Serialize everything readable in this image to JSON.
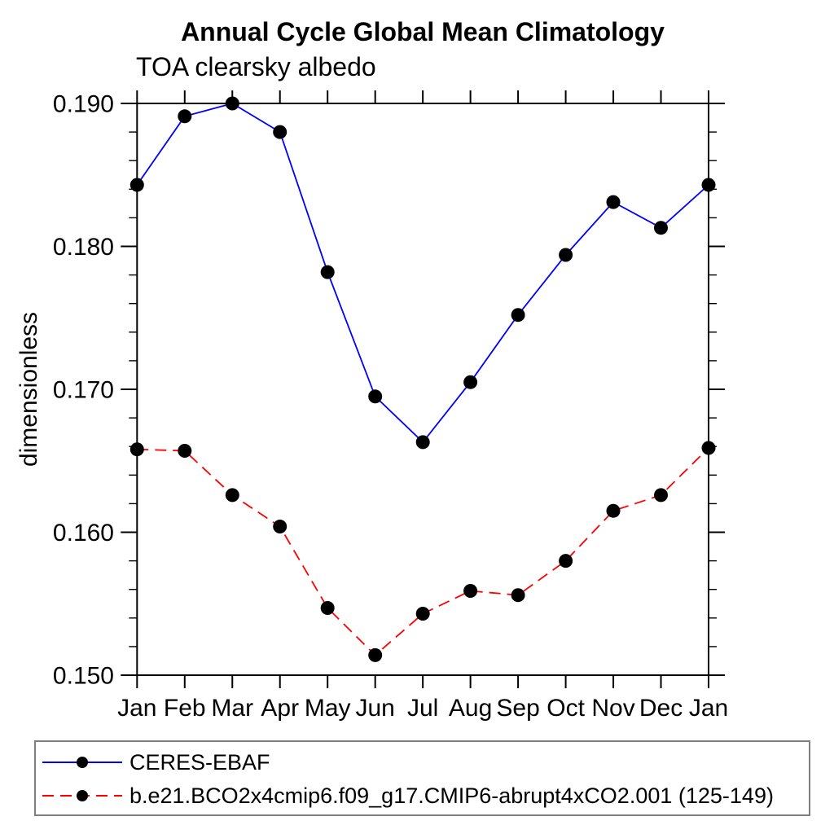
{
  "chart_data": {
    "type": "line",
    "title": "Annual Cycle Global Mean Climatology",
    "subtitle": "TOA clearsky albedo",
    "ylabel": "dimensionless",
    "ylim": [
      0.15,
      0.19
    ],
    "ytick_major": 0.01,
    "ytick_minor": 0.002,
    "ytick_labels": [
      "0.150",
      "0.160",
      "0.170",
      "0.180",
      "0.190"
    ],
    "categories": [
      "Jan",
      "Feb",
      "Mar",
      "Apr",
      "May",
      "Jun",
      "Jul",
      "Aug",
      "Sep",
      "Oct",
      "Nov",
      "Dec",
      "Jan"
    ],
    "grid": false,
    "legend_position": "bottom-left-box",
    "series": [
      {
        "name": "CERES-EBAF",
        "color": "#0000ff",
        "style": "solid",
        "marker": "filled-circle",
        "marker_color": "#000000",
        "values": [
          0.1843,
          0.1891,
          0.19,
          0.188,
          0.1782,
          0.1695,
          0.1663,
          0.1705,
          0.1752,
          0.1794,
          0.1831,
          0.1813,
          0.1843
        ]
      },
      {
        "name": "b.e21.BCO2x4cmip6.f09_g17.CMIP6-abrupt4xCO2.001 (125-149)",
        "color": "#ff0000",
        "style": "dashed",
        "marker": "filled-circle",
        "marker_color": "#000000",
        "values": [
          0.1658,
          0.1657,
          0.1626,
          0.1604,
          0.1547,
          0.1514,
          0.1543,
          0.1559,
          0.1556,
          0.158,
          0.1615,
          0.1626,
          0.1659
        ]
      }
    ]
  },
  "colors": {
    "axis": "#000000",
    "text": "#000000",
    "background": "#ffffff",
    "legend_border": "#7f7f7f",
    "series_blue": "#0000ff",
    "series_red": "#ff0000",
    "marker": "#000000"
  }
}
